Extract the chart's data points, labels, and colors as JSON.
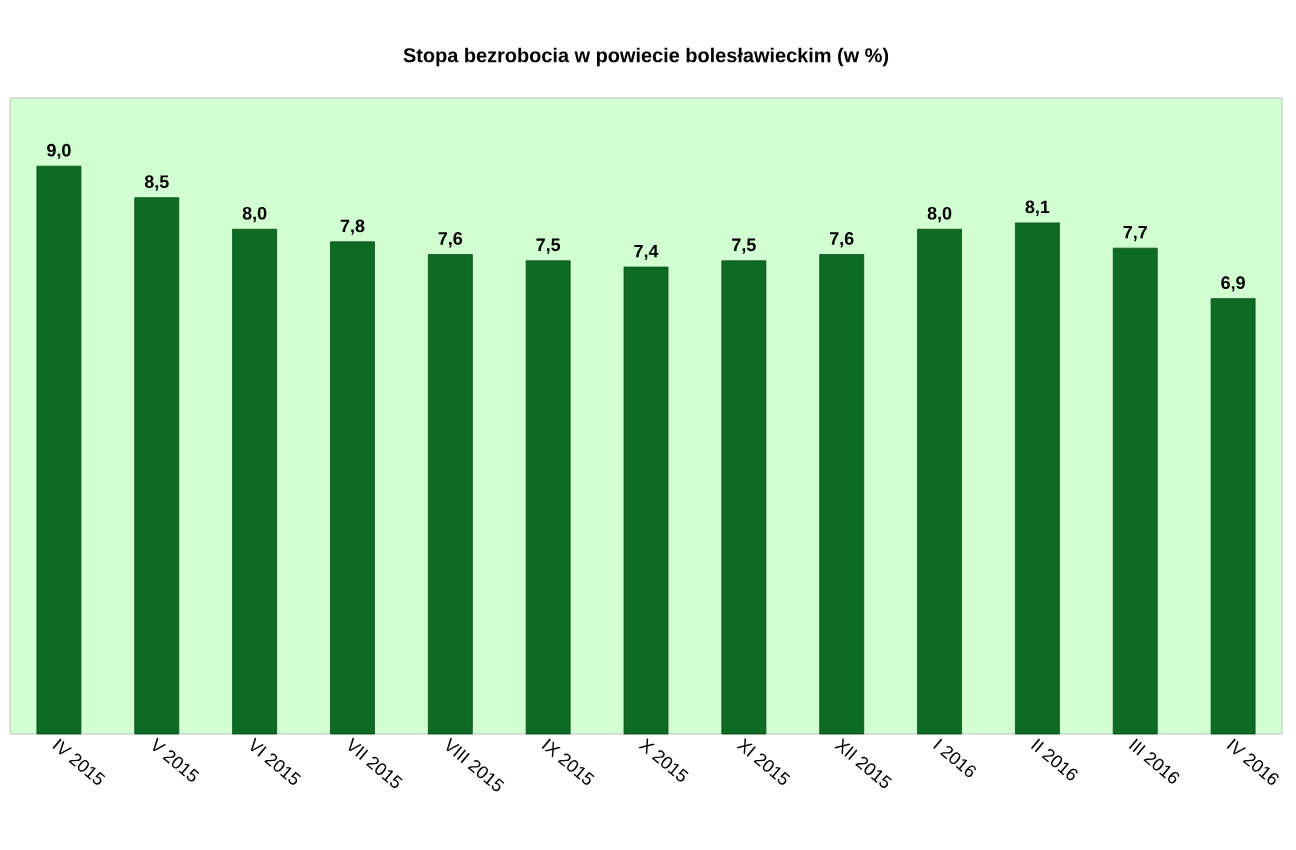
{
  "chart_data": {
    "type": "bar",
    "title": "Stopa bezrobocia w powiecie bolesławieckim (w %)",
    "categories": [
      "IV 2015",
      "V 2015",
      "VI 2015",
      "VII 2015",
      "VIII 2015",
      "IX 2015",
      "X 2015",
      "XI 2015",
      "XII 2015",
      "I 2016",
      "II 2016",
      "III 2016",
      "IV 2016"
    ],
    "values": [
      9.0,
      8.5,
      8.0,
      7.8,
      7.6,
      7.5,
      7.4,
      7.5,
      7.6,
      8.0,
      8.1,
      7.7,
      6.9
    ],
    "value_labels": [
      "9,0",
      "8,5",
      "8,0",
      "7,8",
      "7,6",
      "7,5",
      "7,4",
      "7,5",
      "7,6",
      "8,0",
      "8,1",
      "7,7",
      "6,9"
    ],
    "color": "#0d6b24"
  }
}
